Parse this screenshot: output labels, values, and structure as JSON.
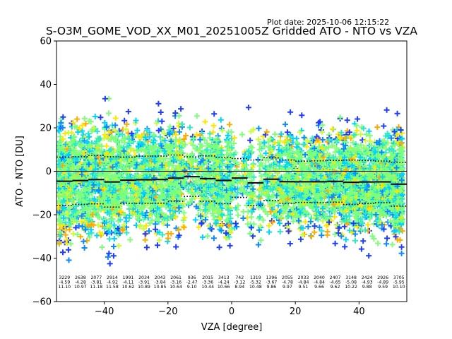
{
  "plot_date": "Plot date: 2025-10-06 12:15:22",
  "chart_data": {
    "type": "scatter",
    "title": "S-O3M_GOME_VOD_XX_M01_20251005Z Gridded ATO - NTO vs VZA",
    "xlabel": "VZA [degree]",
    "ylabel": "ATO - NTO [DU]",
    "xlim": [
      -55,
      55
    ],
    "ylim": [
      -60,
      60
    ],
    "xticks": [
      -40,
      -20,
      0,
      20,
      40
    ],
    "xtick_labels": [
      "−40",
      "−20",
      "0",
      "20",
      "40"
    ],
    "yticks": [
      60,
      40,
      20,
      0,
      -20,
      -40,
      -60
    ],
    "ytick_labels": [
      "60",
      "40",
      "20",
      "0",
      "−20",
      "−40",
      "−60"
    ],
    "grid": false,
    "marker": "+",
    "marker_colors": [
      "#1f3cff",
      "#0a8cff",
      "#00d2ff",
      "#2ee8c8",
      "#7dff7a",
      "#c8ff3c",
      "#ffe600",
      "#ffaa00"
    ],
    "zero_line": 0,
    "bin_width": 5,
    "bins": {
      "start": [
        -55,
        -50,
        -45,
        -40,
        -35,
        -30,
        -25,
        -20,
        -15,
        -10,
        -5,
        0,
        5,
        10,
        15,
        20,
        25,
        30,
        35,
        40,
        45,
        50
      ],
      "count": [
        "3229",
        "2638",
        "2077",
        "2914",
        "1991",
        "2034",
        "2043",
        "2061",
        "936",
        "2015",
        "3413",
        "742",
        "1319",
        "1396",
        "2055",
        "2033",
        "2040",
        "2407",
        "3148",
        "2424",
        "2926",
        "3705"
      ],
      "mean": [
        "-4.59",
        "-4.28",
        "-3.81",
        "-4.92",
        "-4.11",
        "-3.91",
        "-3.84",
        "-3.16",
        "-2.47",
        "-3.36",
        "-4.24",
        "-3.12",
        "-5.32",
        "-3.67",
        "-4.78",
        "-4.84",
        "-4.84",
        "-4.65",
        "-5.08",
        "-4.93",
        "-4.89",
        "-5.95"
      ],
      "std": [
        "11.10",
        "10.97",
        "11.18",
        "11.58",
        "10.62",
        "10.89",
        "10.85",
        "10.64",
        "9.10",
        "10.44",
        "10.66",
        "8.94",
        "10.48",
        "9.86",
        "9.97",
        "9.51",
        "9.66",
        "9.62",
        "10.22",
        "9.88",
        "9.59",
        "10.10"
      ]
    },
    "series": [
      {
        "name": "mean",
        "style": "solid",
        "color": "#000000"
      },
      {
        "name": "mean + std",
        "style": "dotted",
        "color": "#000000"
      },
      {
        "name": "mean - std",
        "style": "dotted",
        "color": "#000000"
      }
    ]
  }
}
